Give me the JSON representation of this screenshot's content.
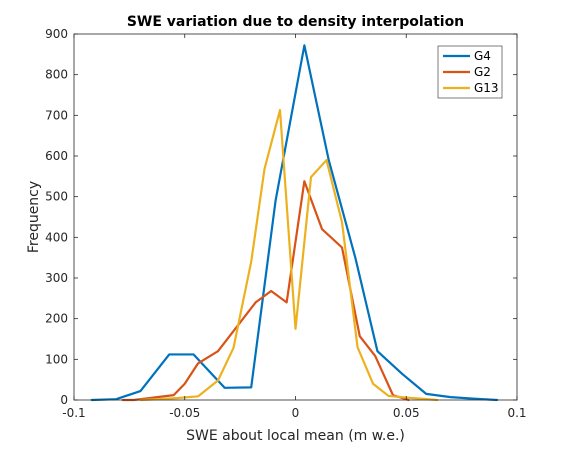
{
  "chart_data": {
    "type": "line",
    "title": "SWE variation due to density interpolation",
    "xlabel": "SWE about local mean (m w.e.)",
    "ylabel": "Frequency",
    "xlim": [
      -0.1,
      0.1
    ],
    "ylim": [
      0,
      900
    ],
    "xticks": [
      -0.1,
      -0.05,
      0,
      0.05,
      0.1
    ],
    "xtick_labels": [
      "-0.1",
      "-0.05",
      "0",
      "0.05",
      "0.1"
    ],
    "yticks": [
      0,
      100,
      200,
      300,
      400,
      500,
      600,
      700,
      800,
      900
    ],
    "ytick_labels": [
      "0",
      "100",
      "200",
      "300",
      "400",
      "500",
      "600",
      "700",
      "800",
      "900"
    ],
    "grid": false,
    "legend_position": "top-right",
    "series": [
      {
        "name": "G4",
        "color": "#0072BD",
        "x": [
          -0.092,
          -0.081,
          -0.07,
          -0.057,
          -0.046,
          -0.032,
          -0.02,
          -0.009,
          0.004,
          0.015,
          0.027,
          0.037,
          0.048,
          0.059,
          0.07,
          0.081,
          0.091
        ],
        "y": [
          0,
          2,
          22,
          112,
          112,
          30,
          31,
          490,
          872,
          590,
          350,
          120,
          65,
          15,
          7,
          3,
          0
        ]
      },
      {
        "name": "G2",
        "color": "#D95319",
        "x": [
          -0.078,
          -0.073,
          -0.055,
          -0.05,
          -0.044,
          -0.041,
          -0.035,
          -0.018,
          -0.011,
          -0.004,
          0.004,
          0.012,
          0.021,
          0.029,
          0.036,
          0.044,
          0.051
        ],
        "y": [
          0,
          0,
          12,
          40,
          90,
          100,
          120,
          240,
          268,
          240,
          538,
          420,
          375,
          157,
          108,
          12,
          0
        ]
      },
      {
        "name": "G13",
        "color": "#EDB120",
        "x": [
          -0.07,
          -0.062,
          -0.053,
          -0.044,
          -0.035,
          -0.028,
          -0.02,
          -0.014,
          -0.007,
          0,
          0.007,
          0.014,
          0.021,
          0.028,
          0.035,
          0.042,
          0.05,
          0.057,
          0.064
        ],
        "y": [
          0,
          2,
          5,
          9,
          48,
          128,
          340,
          568,
          713,
          175,
          548,
          590,
          437,
          130,
          40,
          10,
          6,
          3,
          0
        ]
      }
    ]
  }
}
